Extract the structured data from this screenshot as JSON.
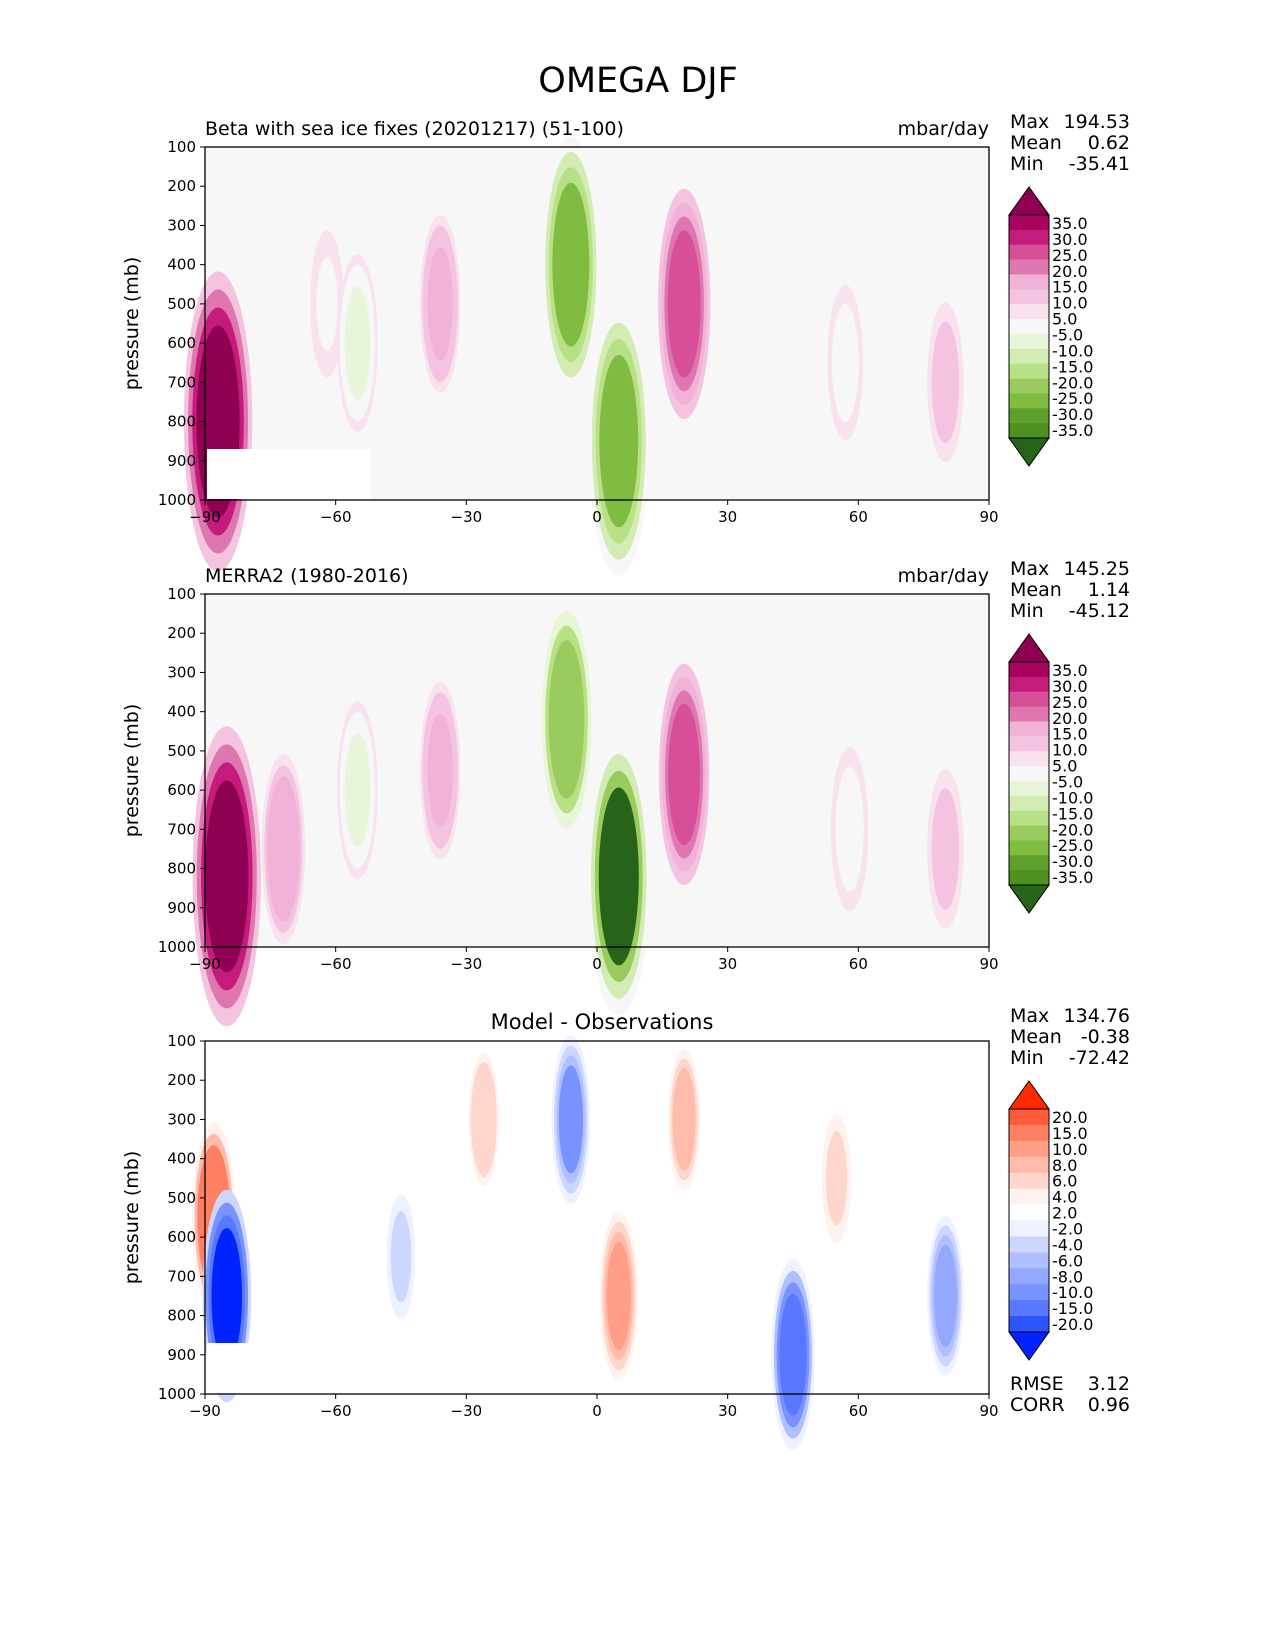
{
  "figure_title": "OMEGA DJF",
  "chart_data": [
    {
      "type": "heatmap",
      "title": "Beta with sea ice fixes (20201217) (51-100)",
      "units": "mbar/day",
      "xlabel": "",
      "ylabel": "pressure (mb)",
      "xlim": [
        -90,
        90
      ],
      "ylim": [
        1000,
        100
      ],
      "xticks": [
        "−90",
        "−60",
        "−30",
        "0",
        "30",
        "60",
        "90"
      ],
      "yticks": [
        "100",
        "200",
        "300",
        "400",
        "500",
        "600",
        "700",
        "800",
        "900",
        "1000"
      ],
      "stats": {
        "max_label": "Max",
        "max": "194.53",
        "mean_label": "Mean",
        "mean": "0.62",
        "min_label": "Min",
        "min": "-35.41"
      },
      "colorbar_levels": [
        "35.0",
        "30.0",
        "25.0",
        "20.0",
        "15.0",
        "10.0",
        "5.0",
        "-5.0",
        "-10.0",
        "-15.0",
        "-20.0",
        "-25.0",
        "-30.0",
        "-35.0"
      ],
      "colormap": "pink-green",
      "features": [
        {
          "lon": -87,
          "p": 800,
          "value": 40
        },
        {
          "lon": -62,
          "p": 500,
          "value": -5
        },
        {
          "lon": -55,
          "p": 600,
          "value": -12
        },
        {
          "lon": -36,
          "p": 500,
          "value": 12
        },
        {
          "lon": -6,
          "p": 400,
          "value": -30
        },
        {
          "lon": 5,
          "p": 850,
          "value": -33
        },
        {
          "lon": 20,
          "p": 500,
          "value": 24
        },
        {
          "lon": 57,
          "p": 650,
          "value": -7
        },
        {
          "lon": 80,
          "p": 700,
          "value": 8
        }
      ]
    },
    {
      "type": "heatmap",
      "title": "MERRA2 (1980-2016)",
      "units": "mbar/day",
      "xlabel": "",
      "ylabel": "pressure (mb)",
      "xlim": [
        -90,
        90
      ],
      "ylim": [
        1000,
        100
      ],
      "xticks": [
        "−90",
        "−60",
        "−30",
        "0",
        "30",
        "60",
        "90"
      ],
      "yticks": [
        "100",
        "200",
        "300",
        "400",
        "500",
        "600",
        "700",
        "800",
        "900",
        "1000"
      ],
      "stats": {
        "max_label": "Max",
        "max": "145.25",
        "mean_label": "Mean",
        "mean": "1.14",
        "min_label": "Min",
        "min": "-45.12"
      },
      "colorbar_levels": [
        "35.0",
        "30.0",
        "25.0",
        "20.0",
        "15.0",
        "10.0",
        "5.0",
        "-5.0",
        "-10.0",
        "-15.0",
        "-20.0",
        "-25.0",
        "-30.0",
        "-35.0"
      ],
      "colormap": "pink-green",
      "features": [
        {
          "lon": -85,
          "p": 820,
          "value": 40
        },
        {
          "lon": -72,
          "p": 750,
          "value": 15
        },
        {
          "lon": -55,
          "p": 600,
          "value": -12
        },
        {
          "lon": -36,
          "p": 550,
          "value": 12
        },
        {
          "lon": -7,
          "p": 420,
          "value": -28
        },
        {
          "lon": 5,
          "p": 820,
          "value": -35
        },
        {
          "lon": 20,
          "p": 560,
          "value": 22
        },
        {
          "lon": 58,
          "p": 700,
          "value": -9
        },
        {
          "lon": 80,
          "p": 750,
          "value": 8
        }
      ]
    },
    {
      "type": "heatmap",
      "title": "Model - Observations",
      "units": "",
      "xlabel": "",
      "ylabel": "pressure (mb)",
      "xlim": [
        -90,
        90
      ],
      "ylim": [
        1000,
        100
      ],
      "xticks": [
        "−90",
        "−60",
        "−30",
        "0",
        "30",
        "60",
        "90"
      ],
      "yticks": [
        "100",
        "200",
        "300",
        "400",
        "500",
        "600",
        "700",
        "800",
        "900",
        "1000"
      ],
      "stats": {
        "max_label": "Max",
        "max": "134.76",
        "mean_label": "Mean",
        "mean": "-0.38",
        "min_label": "Min",
        "min": "-72.42"
      },
      "extra_stats": {
        "rmse_label": "RMSE",
        "rmse": "3.12",
        "corr_label": "CORR",
        "corr": "0.96"
      },
      "colorbar_levels": [
        "20.0",
        "15.0",
        "10.0",
        "8.0",
        "6.0",
        "4.0",
        "2.0",
        "-2.0",
        "-4.0",
        "-6.0",
        "-8.0",
        "-10.0",
        "-15.0",
        "-20.0"
      ],
      "colormap": "red-blue",
      "features": [
        {
          "lon": -88,
          "p": 550,
          "value": 15
        },
        {
          "lon": -85,
          "p": 750,
          "value": -20
        },
        {
          "lon": -45,
          "p": 650,
          "value": -4
        },
        {
          "lon": -26,
          "p": 300,
          "value": 6
        },
        {
          "lon": -6,
          "p": 300,
          "value": -10
        },
        {
          "lon": 5,
          "p": 750,
          "value": 10
        },
        {
          "lon": 20,
          "p": 300,
          "value": 8
        },
        {
          "lon": 45,
          "p": 900,
          "value": -15
        },
        {
          "lon": 55,
          "p": 450,
          "value": 5
        },
        {
          "lon": 80,
          "p": 750,
          "value": -8
        }
      ]
    }
  ]
}
